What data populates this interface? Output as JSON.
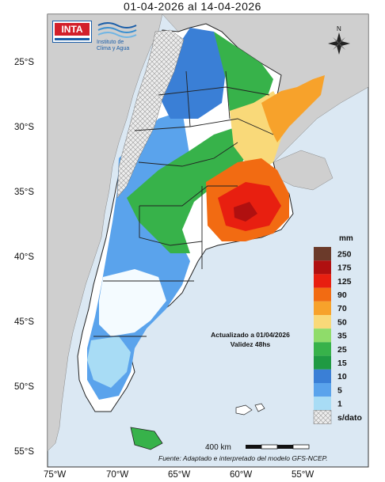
{
  "title": "01-04-2026 al 14-04-2026",
  "logos": {
    "inta": "INTA",
    "ica_line1": "Instituto de",
    "ica_line2": "Clima y Agua"
  },
  "compass": {
    "label": "N"
  },
  "lat_labels": [
    "25°S",
    "30°S",
    "35°S",
    "40°S",
    "45°S",
    "50°S",
    "55°S"
  ],
  "lon_labels": [
    "75°W",
    "70°W",
    "65°W",
    "60°W",
    "55°W"
  ],
  "legend": {
    "unit": "mm",
    "levels": [
      {
        "label": "250",
        "color": "#6b3a2a"
      },
      {
        "label": "175",
        "color": "#b01010"
      },
      {
        "label": "125",
        "color": "#e81f10"
      },
      {
        "label": "90",
        "color": "#f26b12"
      },
      {
        "label": "70",
        "color": "#f7a22b"
      },
      {
        "label": "50",
        "color": "#f9d979"
      },
      {
        "label": "35",
        "color": "#8fdc6a"
      },
      {
        "label": "25",
        "color": "#37b24a"
      },
      {
        "label": "15",
        "color": "#1f9a43"
      },
      {
        "label": "10",
        "color": "#3a7fd6"
      },
      {
        "label": "5",
        "color": "#5aa3ec"
      },
      {
        "label": "1",
        "color": "#a8dcf5"
      },
      {
        "label": "s/dato",
        "color": "#e6e6e6"
      }
    ]
  },
  "update_line1": "Actualizado a 01/04/2026",
  "update_line2": "Validez 48hs",
  "scale_label": "400 km",
  "source": "Fuente: Adaptado e interpretado del modelo GFS-NCEP."
}
